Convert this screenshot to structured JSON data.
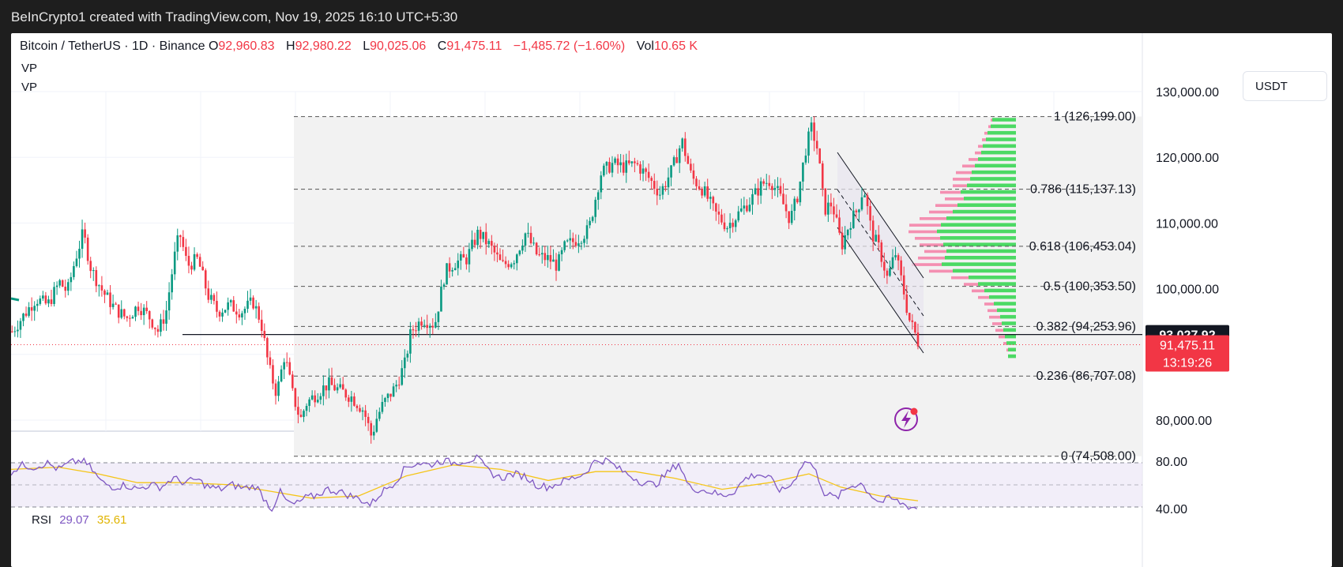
{
  "header": {
    "caption": "BeInCrypto1 created with TradingView.com, Nov 19, 2025 16:10 UTC+5:30"
  },
  "legend": {
    "symbol": "Bitcoin / TetherUS · 1D · Binance",
    "open_label": "O",
    "open": "92,960.83",
    "high_label": "H",
    "high": "92,980.22",
    "low_label": "L",
    "low": "90,025.06",
    "close_label": "C",
    "close": "91,475.11",
    "change": "−1,485.72 (−1.60%)",
    "vol_label": "Vol",
    "vol": "10.65 K",
    "indicators": [
      "VP",
      "VP"
    ]
  },
  "unit": "USDT",
  "colors": {
    "up": "#089981",
    "down": "#f23645",
    "rsi": "#7e57c2",
    "rsi_ma": "#f5c518",
    "vp_up": "#4cd964",
    "vp_down": "#f48fb1"
  },
  "price_badges": {
    "line_value": "93,027.92",
    "last_price": "91,475.11",
    "countdown": "13:19:26"
  },
  "rsi": {
    "name": "RSI",
    "value": "29.07",
    "ma_value": "35.61",
    "levels": [
      "80.00",
      "40.00"
    ]
  },
  "chart_data": {
    "type": "candlestick",
    "title": "Bitcoin / TetherUS · 1D · Binance",
    "y_axis": {
      "ticks": [
        130000,
        120000,
        110000,
        100000,
        90000,
        80000
      ],
      "tick_labels": [
        "130,000.00",
        "120,000.00",
        "110,000.00",
        "100,000.00",
        "",
        "80,000.00"
      ],
      "ylim": [
        73000,
        132500
      ]
    },
    "fibonacci": [
      {
        "level": "1",
        "price": 126199.0,
        "label": "1 (126,199.00)"
      },
      {
        "level": "0.786",
        "price": 115137.13,
        "label": "0.786 (115,137.13)"
      },
      {
        "level": "0.618",
        "price": 106453.04,
        "label": "0.618 (106,453.04)"
      },
      {
        "level": "0.5",
        "price": 100353.5,
        "label": "0.5 (100,353.50)"
      },
      {
        "level": "0.382",
        "price": 94253.96,
        "label": "0.382 (94,253.96)"
      },
      {
        "level": "0.236",
        "price": 86707.08,
        "label": "0.236 (86,707.08)"
      },
      {
        "level": "0",
        "price": 74508.0,
        "label": "0 (74,508.00)"
      }
    ],
    "horizontal_line": 93027.92,
    "last_close": 91475.11,
    "price_path": [
      [
        0,
        93500
      ],
      [
        15,
        96000
      ],
      [
        30,
        98500
      ],
      [
        45,
        97500
      ],
      [
        60,
        101000
      ],
      [
        70,
        99500
      ],
      [
        80,
        104500
      ],
      [
        90,
        108500
      ],
      [
        100,
        103000
      ],
      [
        115,
        99500
      ],
      [
        130,
        97000
      ],
      [
        145,
        95500
      ],
      [
        160,
        97500
      ],
      [
        175,
        95500
      ],
      [
        185,
        93500
      ],
      [
        195,
        96500
      ],
      [
        205,
        104500
      ],
      [
        212,
        108500
      ],
      [
        222,
        103500
      ],
      [
        235,
        104500
      ],
      [
        248,
        99000
      ],
      [
        260,
        96500
      ],
      [
        275,
        97500
      ],
      [
        290,
        96500
      ],
      [
        305,
        98000
      ],
      [
        315,
        95000
      ],
      [
        325,
        88000
      ],
      [
        335,
        84000
      ],
      [
        345,
        90000
      ],
      [
        355,
        84000
      ],
      [
        365,
        80000
      ],
      [
        372,
        82500
      ],
      [
        385,
        84000
      ],
      [
        400,
        85500
      ],
      [
        415,
        84500
      ],
      [
        430,
        83500
      ],
      [
        445,
        81500
      ],
      [
        455,
        77500
      ],
      [
        462,
        80500
      ],
      [
        470,
        82500
      ],
      [
        485,
        85000
      ],
      [
        497,
        88500
      ],
      [
        505,
        93500
      ],
      [
        520,
        95500
      ],
      [
        535,
        94500
      ],
      [
        548,
        102500
      ],
      [
        560,
        104000
      ],
      [
        575,
        104500
      ],
      [
        590,
        108500
      ],
      [
        605,
        106500
      ],
      [
        620,
        103500
      ],
      [
        635,
        104500
      ],
      [
        650,
        108500
      ],
      [
        665,
        105000
      ],
      [
        680,
        104500
      ],
      [
        690,
        103500
      ],
      [
        700,
        106500
      ],
      [
        715,
        107500
      ],
      [
        730,
        109000
      ],
      [
        745,
        117500
      ],
      [
        760,
        119000
      ],
      [
        775,
        118500
      ],
      [
        790,
        119000
      ],
      [
        805,
        117000
      ],
      [
        820,
        114500
      ],
      [
        835,
        118000
      ],
      [
        848,
        122500
      ],
      [
        860,
        117000
      ],
      [
        875,
        115000
      ],
      [
        890,
        111500
      ],
      [
        905,
        109500
      ],
      [
        920,
        111500
      ],
      [
        935,
        113500
      ],
      [
        950,
        116000
      ],
      [
        960,
        116500
      ],
      [
        970,
        114500
      ],
      [
        985,
        110500
      ],
      [
        995,
        114500
      ],
      [
        1005,
        121500
      ],
      [
        1012,
        124500
      ],
      [
        1020,
        121000
      ],
      [
        1028,
        112000
      ],
      [
        1038,
        113000
      ],
      [
        1050,
        106500
      ],
      [
        1060,
        110000
      ],
      [
        1070,
        112000
      ],
      [
        1078,
        115500
      ],
      [
        1088,
        108500
      ],
      [
        1098,
        106000
      ],
      [
        1108,
        101500
      ],
      [
        1118,
        105500
      ],
      [
        1128,
        100000
      ],
      [
        1135,
        95500
      ],
      [
        1142,
        93500
      ],
      [
        1148,
        91475
      ]
    ],
    "rsi_path": [
      [
        0,
        62
      ],
      [
        15,
        68
      ],
      [
        30,
        66
      ],
      [
        45,
        70
      ],
      [
        60,
        64
      ],
      [
        75,
        70
      ],
      [
        90,
        72
      ],
      [
        100,
        66
      ],
      [
        115,
        52
      ],
      [
        130,
        48
      ],
      [
        145,
        50
      ],
      [
        160,
        46
      ],
      [
        175,
        50
      ],
      [
        190,
        48
      ],
      [
        205,
        56
      ],
      [
        220,
        52
      ],
      [
        235,
        55
      ],
      [
        250,
        48
      ],
      [
        265,
        46
      ],
      [
        280,
        50
      ],
      [
        295,
        47
      ],
      [
        310,
        49
      ],
      [
        322,
        36
      ],
      [
        330,
        28
      ],
      [
        340,
        44
      ],
      [
        350,
        34
      ],
      [
        360,
        32
      ],
      [
        372,
        38
      ],
      [
        385,
        40
      ],
      [
        400,
        46
      ],
      [
        415,
        44
      ],
      [
        430,
        40
      ],
      [
        445,
        36
      ],
      [
        455,
        32
      ],
      [
        470,
        44
      ],
      [
        485,
        52
      ],
      [
        500,
        66
      ],
      [
        515,
        70
      ],
      [
        530,
        68
      ],
      [
        545,
        72
      ],
      [
        560,
        70
      ],
      [
        575,
        72
      ],
      [
        590,
        74
      ],
      [
        605,
        62
      ],
      [
        620,
        56
      ],
      [
        635,
        60
      ],
      [
        650,
        58
      ],
      [
        665,
        50
      ],
      [
        680,
        48
      ],
      [
        695,
        52
      ],
      [
        710,
        56
      ],
      [
        725,
        60
      ],
      [
        740,
        72
      ],
      [
        755,
        72
      ],
      [
        770,
        64
      ],
      [
        785,
        58
      ],
      [
        800,
        52
      ],
      [
        815,
        50
      ],
      [
        830,
        60
      ],
      [
        845,
        70
      ],
      [
        858,
        48
      ],
      [
        870,
        46
      ],
      [
        885,
        44
      ],
      [
        900,
        40
      ],
      [
        915,
        44
      ],
      [
        930,
        56
      ],
      [
        945,
        60
      ],
      [
        960,
        56
      ],
      [
        975,
        44
      ],
      [
        990,
        52
      ],
      [
        1000,
        68
      ],
      [
        1010,
        72
      ],
      [
        1020,
        60
      ],
      [
        1030,
        42
      ],
      [
        1045,
        38
      ],
      [
        1060,
        48
      ],
      [
        1075,
        52
      ],
      [
        1090,
        40
      ],
      [
        1100,
        34
      ],
      [
        1112,
        38
      ],
      [
        1125,
        34
      ],
      [
        1138,
        30
      ],
      [
        1148,
        29.07
      ]
    ],
    "rsi_ma_path": [
      [
        0,
        64
      ],
      [
        60,
        66
      ],
      [
        110,
        60
      ],
      [
        160,
        52
      ],
      [
        220,
        52
      ],
      [
        280,
        50
      ],
      [
        330,
        44
      ],
      [
        380,
        38
      ],
      [
        440,
        40
      ],
      [
        500,
        58
      ],
      [
        560,
        68
      ],
      [
        620,
        64
      ],
      [
        680,
        54
      ],
      [
        740,
        62
      ],
      [
        790,
        62
      ],
      [
        840,
        56
      ],
      [
        900,
        46
      ],
      [
        960,
        52
      ],
      [
        1010,
        60
      ],
      [
        1050,
        48
      ],
      [
        1100,
        40
      ],
      [
        1148,
        35.61
      ]
    ],
    "volume_profile": [
      [
        126000,
        30,
        2
      ],
      [
        125000,
        32,
        3
      ],
      [
        124000,
        36,
        4
      ],
      [
        123000,
        38,
        5
      ],
      [
        122000,
        42,
        6
      ],
      [
        121000,
        44,
        8
      ],
      [
        120000,
        48,
        12
      ],
      [
        119000,
        52,
        16
      ],
      [
        118000,
        56,
        20
      ],
      [
        117000,
        58,
        22
      ],
      [
        116000,
        62,
        18
      ],
      [
        115000,
        70,
        26
      ],
      [
        114000,
        66,
        24
      ],
      [
        113000,
        74,
        28
      ],
      [
        112000,
        80,
        30
      ],
      [
        111000,
        88,
        34
      ],
      [
        110000,
        95,
        40
      ],
      [
        109000,
        100,
        36
      ],
      [
        108000,
        96,
        32
      ],
      [
        107000,
        92,
        30
      ],
      [
        106000,
        88,
        28
      ],
      [
        105000,
        90,
        34
      ],
      [
        104000,
        94,
        38
      ],
      [
        103000,
        80,
        30
      ],
      [
        102000,
        60,
        22
      ],
      [
        101000,
        48,
        18
      ],
      [
        100000,
        40,
        16
      ],
      [
        99000,
        34,
        14
      ],
      [
        98000,
        28,
        12
      ],
      [
        97000,
        24,
        12
      ],
      [
        96000,
        20,
        14
      ],
      [
        95000,
        18,
        12
      ],
      [
        94000,
        16,
        10
      ],
      [
        93000,
        14,
        8
      ],
      [
        92000,
        12,
        4
      ],
      [
        91000,
        10,
        2
      ],
      [
        90000,
        10,
        0
      ]
    ]
  }
}
